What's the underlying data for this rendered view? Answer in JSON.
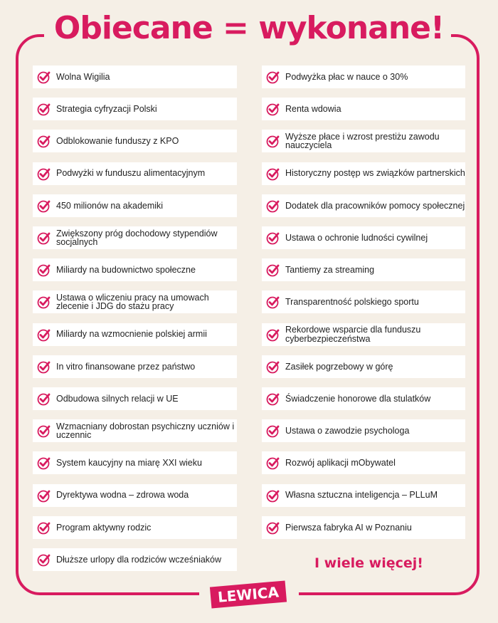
{
  "title": "Obiecane = wykonane!",
  "colors": {
    "accent": "#d81b5f",
    "background": "#f5efe6",
    "card": "#ffffff"
  },
  "icon": "check-circle-icon",
  "left_items": [
    "Wolna Wigilia",
    "Strategia cyfryzacji Polski",
    "Odblokowanie funduszy z KPO",
    "Podwyżki w funduszu alimentacyjnym",
    "450 milionów na akademiki",
    "Zwiększony próg dochodowy stypendiów socjalnych",
    "Miliardy na budownictwo społeczne",
    "Ustawa o wliczeniu pracy na umowach zlecenie i JDG do stażu pracy",
    "Miliardy na wzmocnienie polskiej armii",
    "In vitro finansowane przez państwo",
    "Odbudowa silnych relacji w UE",
    "Wzmacniany dobrostan psychiczny uczniów i uczennic",
    "System kaucyjny na miarę XXI wieku",
    "Dyrektywa wodna – zdrowa woda",
    "Program aktywny rodzic",
    "Dłuższe urlopy dla rodziców wcześniaków"
  ],
  "right_items": [
    "Podwyżka płac w nauce o 30%",
    "Renta wdowia",
    "Wyższe płace i wzrost prestiżu zawodu nauczyciela",
    "Historyczny postęp ws związków partnerskich",
    "Dodatek dla pracowników pomocy społecznej",
    "Ustawa o ochronie ludności cywilnej",
    "Tantiemy za streaming",
    "Transparentność polskiego sportu",
    "Rekordowe wsparcie dla funduszu cyberbezpieczeństwa",
    "Zasiłek pogrzebowy w górę",
    "Świadczenie honorowe dla stulatków",
    "Ustawa o zawodzie psychologa",
    "Rozwój aplikacji mObywatel",
    "Własna sztuczna inteligencja – PLLuM",
    "Pierwsza fabryka AI w Poznaniu"
  ],
  "more": "I wiele więcej!",
  "logo": "LEWICA"
}
